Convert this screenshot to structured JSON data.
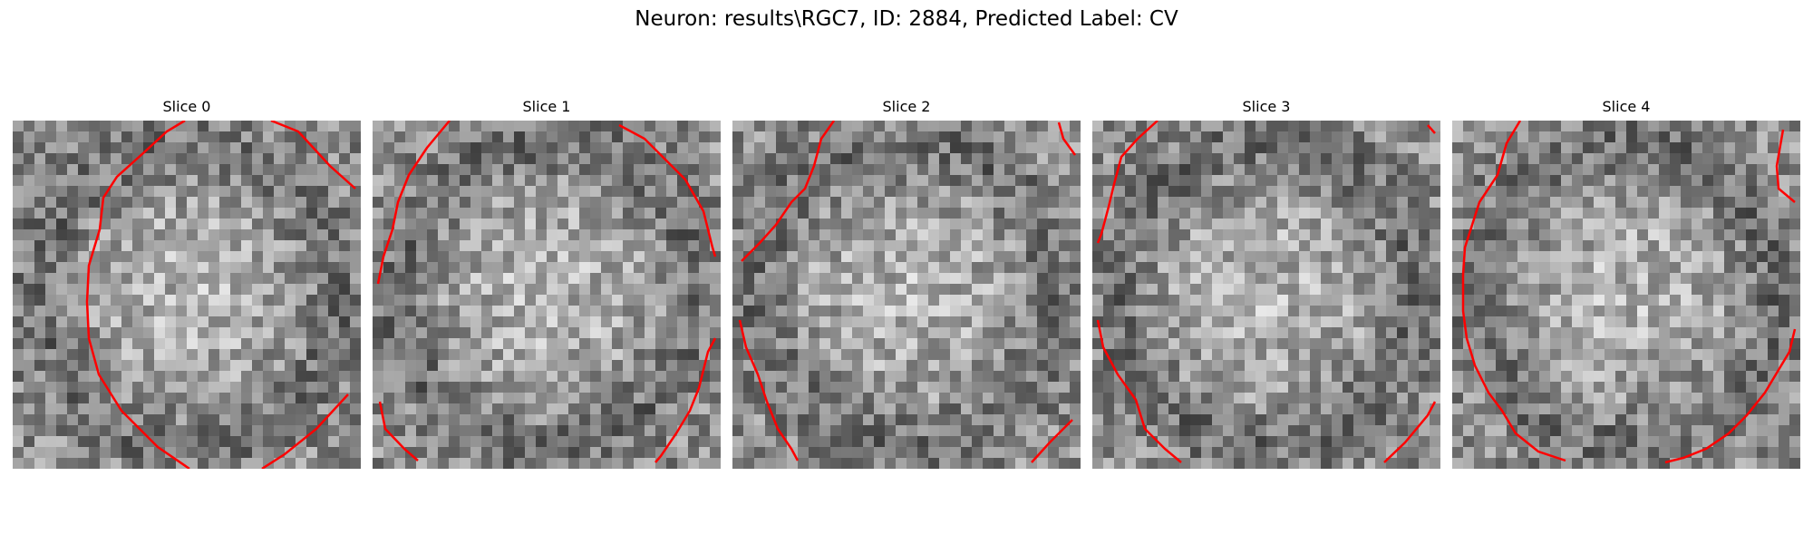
{
  "figure": {
    "title": "Neuron: results\\RGC7, ID: 2884, Predicted Label: CV"
  },
  "slices": [
    {
      "title": "Slice 0"
    },
    {
      "title": "Slice 1"
    },
    {
      "title": "Slice 2"
    },
    {
      "title": "Slice 3"
    },
    {
      "title": "Slice 4"
    }
  ],
  "colors": {
    "contour": "#ff0000"
  },
  "colormap": "gray"
}
